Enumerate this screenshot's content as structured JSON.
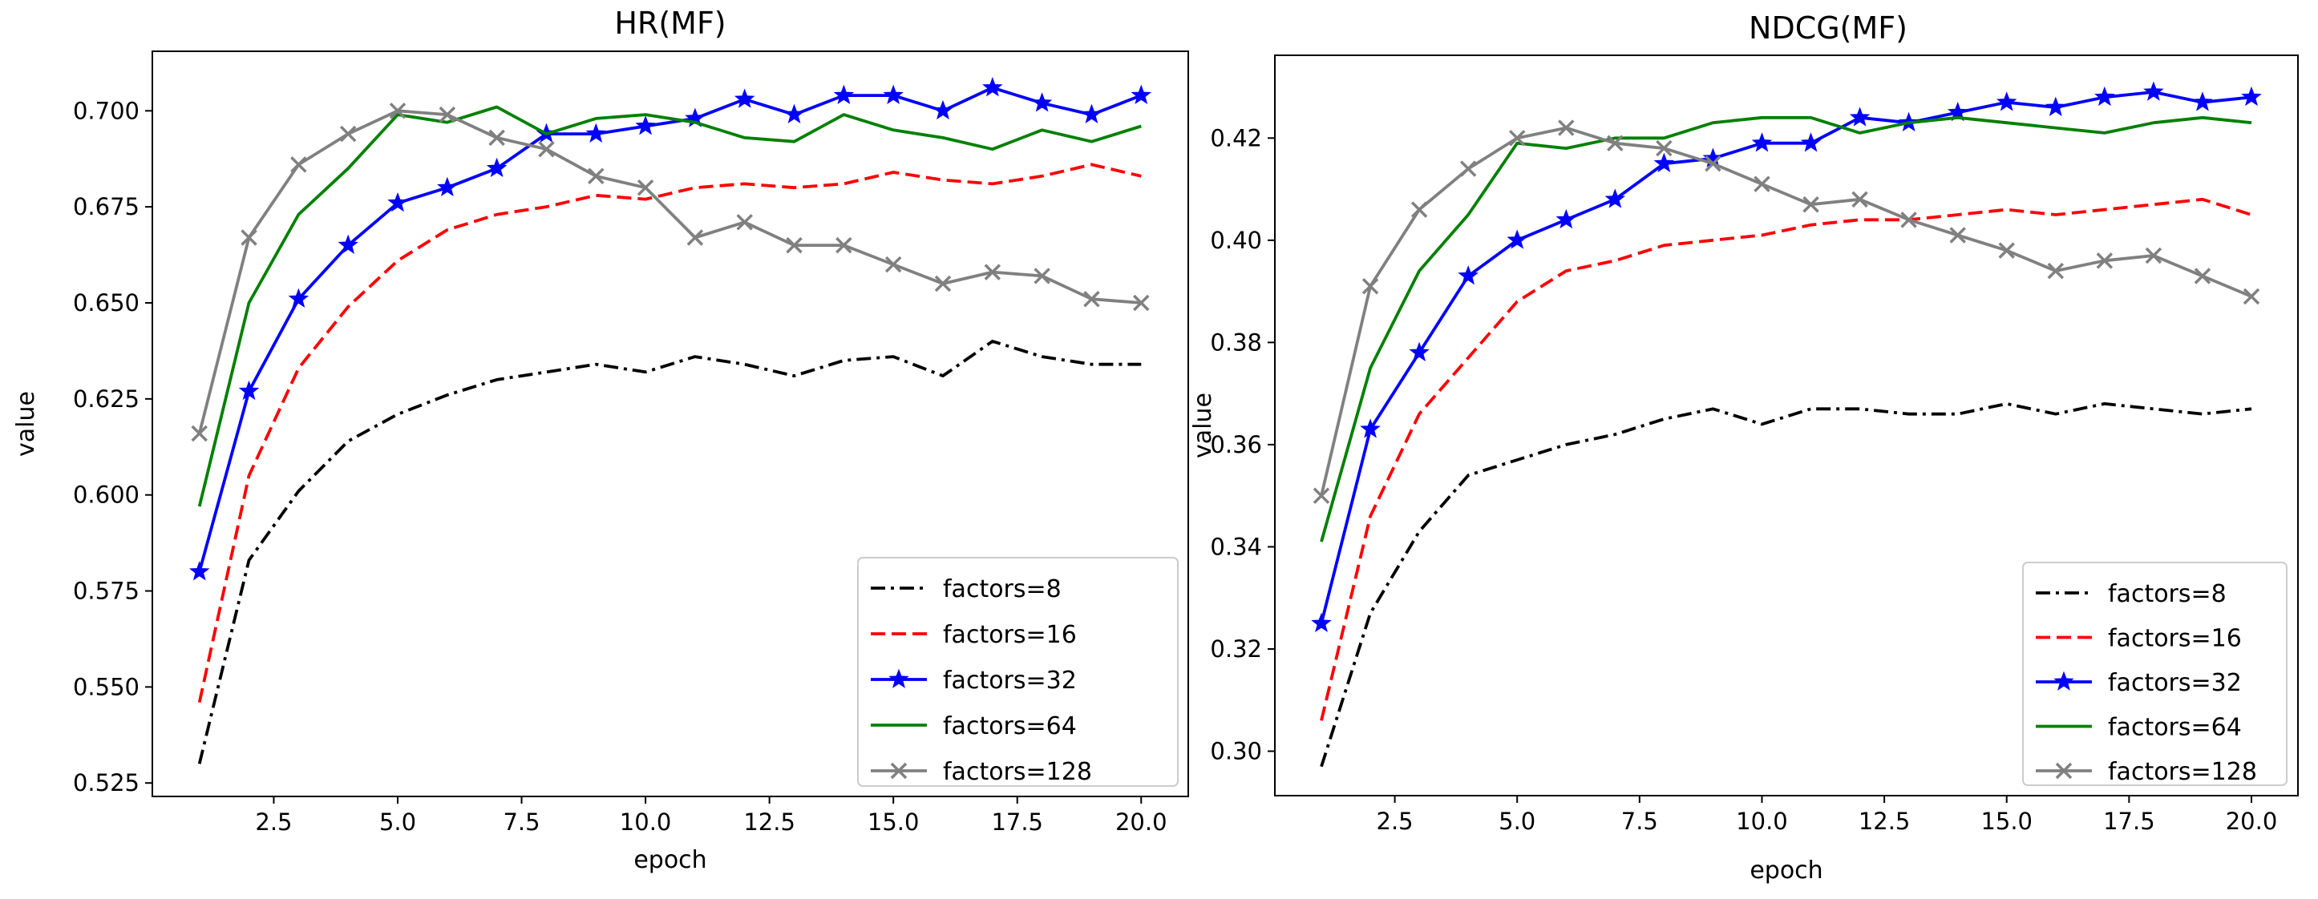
{
  "chart_data": [
    {
      "type": "line",
      "title": "HR(MF)",
      "xlabel": "epoch",
      "ylabel": "value",
      "xlim": [
        0.05,
        20.95
      ],
      "ylim": [
        0.5215,
        0.7155
      ],
      "xticks": [
        2.5,
        5.0,
        7.5,
        10.0,
        12.5,
        15.0,
        17.5,
        20.0
      ],
      "xtick_labels": [
        "2.5",
        "5.0",
        "7.5",
        "10.0",
        "12.5",
        "15.0",
        "17.5",
        "20.0"
      ],
      "yticks": [
        0.525,
        0.55,
        0.575,
        0.6,
        0.625,
        0.65,
        0.675,
        0.7
      ],
      "ytick_labels": [
        "0.525",
        "0.550",
        "0.575",
        "0.600",
        "0.625",
        "0.650",
        "0.675",
        "0.700"
      ],
      "legend_position": "lower-right",
      "x": [
        1,
        2,
        3,
        4,
        5,
        6,
        7,
        8,
        9,
        10,
        11,
        12,
        13,
        14,
        15,
        16,
        17,
        18,
        19,
        20
      ],
      "series": [
        {
          "name": "factors=8",
          "color": "#000000",
          "style": "dashdot",
          "marker": "none",
          "values": [
            0.53,
            0.583,
            0.601,
            0.614,
            0.621,
            0.626,
            0.63,
            0.632,
            0.634,
            0.632,
            0.636,
            0.634,
            0.631,
            0.635,
            0.636,
            0.631,
            0.64,
            0.636,
            0.634,
            0.634
          ]
        },
        {
          "name": "factors=16",
          "color": "#ff0000",
          "style": "dashed",
          "marker": "none",
          "values": [
            0.546,
            0.605,
            0.633,
            0.649,
            0.661,
            0.669,
            0.673,
            0.675,
            0.678,
            0.677,
            0.68,
            0.681,
            0.68,
            0.681,
            0.684,
            0.682,
            0.681,
            0.683,
            0.686,
            0.683
          ]
        },
        {
          "name": "factors=32",
          "color": "#0000ff",
          "style": "solid",
          "marker": "star",
          "values": [
            0.58,
            0.627,
            0.651,
            0.665,
            0.676,
            0.68,
            0.685,
            0.694,
            0.694,
            0.696,
            0.698,
            0.703,
            0.699,
            0.704,
            0.704,
            0.7,
            0.706,
            0.702,
            0.699,
            0.704
          ]
        },
        {
          "name": "factors=64",
          "color": "#008000",
          "style": "solid",
          "marker": "none",
          "values": [
            0.597,
            0.65,
            0.673,
            0.685,
            0.699,
            0.697,
            0.701,
            0.694,
            0.698,
            0.699,
            0.697,
            0.693,
            0.692,
            0.699,
            0.695,
            0.693,
            0.69,
            0.695,
            0.692,
            0.696
          ]
        },
        {
          "name": "factors=128",
          "color": "#808080",
          "style": "solid",
          "marker": "x",
          "values": [
            0.616,
            0.667,
            0.686,
            0.694,
            0.7,
            0.699,
            0.693,
            0.69,
            0.683,
            0.68,
            0.667,
            0.671,
            0.665,
            0.665,
            0.66,
            0.655,
            0.658,
            0.657,
            0.651,
            0.65
          ]
        }
      ]
    },
    {
      "type": "line",
      "title": "NDCG(MF)",
      "xlabel": "epoch",
      "ylabel": "value",
      "xlim": [
        0.05,
        20.95
      ],
      "ylim": [
        0.2913,
        0.4362
      ],
      "xticks": [
        2.5,
        5.0,
        7.5,
        10.0,
        12.5,
        15.0,
        17.5,
        20.0
      ],
      "xtick_labels": [
        "2.5",
        "5.0",
        "7.5",
        "10.0",
        "12.5",
        "15.0",
        "17.5",
        "20.0"
      ],
      "yticks": [
        0.3,
        0.32,
        0.34,
        0.36,
        0.38,
        0.4,
        0.42
      ],
      "ytick_labels": [
        "0.30",
        "0.32",
        "0.34",
        "0.36",
        "0.38",
        "0.40",
        "0.42"
      ],
      "legend_position": "lower-right",
      "x": [
        1,
        2,
        3,
        4,
        5,
        6,
        7,
        8,
        9,
        10,
        11,
        12,
        13,
        14,
        15,
        16,
        17,
        18,
        19,
        20
      ],
      "series": [
        {
          "name": "factors=8",
          "color": "#000000",
          "style": "dashdot",
          "marker": "none",
          "values": [
            0.297,
            0.327,
            0.343,
            0.354,
            0.357,
            0.36,
            0.362,
            0.365,
            0.367,
            0.364,
            0.367,
            0.367,
            0.366,
            0.366,
            0.368,
            0.366,
            0.368,
            0.367,
            0.366,
            0.367
          ]
        },
        {
          "name": "factors=16",
          "color": "#ff0000",
          "style": "dashed",
          "marker": "none",
          "values": [
            0.306,
            0.346,
            0.366,
            0.377,
            0.388,
            0.394,
            0.396,
            0.399,
            0.4,
            0.401,
            0.403,
            0.404,
            0.404,
            0.405,
            0.406,
            0.405,
            0.406,
            0.407,
            0.408,
            0.405
          ]
        },
        {
          "name": "factors=32",
          "color": "#0000ff",
          "style": "solid",
          "marker": "star",
          "values": [
            0.325,
            0.363,
            0.378,
            0.393,
            0.4,
            0.404,
            0.408,
            0.415,
            0.416,
            0.419,
            0.419,
            0.424,
            0.423,
            0.425,
            0.427,
            0.426,
            0.428,
            0.429,
            0.427,
            0.428
          ]
        },
        {
          "name": "factors=64",
          "color": "#008000",
          "style": "solid",
          "marker": "none",
          "values": [
            0.341,
            0.375,
            0.394,
            0.405,
            0.419,
            0.418,
            0.42,
            0.42,
            0.423,
            0.424,
            0.424,
            0.421,
            0.423,
            0.424,
            0.423,
            0.422,
            0.421,
            0.423,
            0.424,
            0.423
          ]
        },
        {
          "name": "factors=128",
          "color": "#808080",
          "style": "solid",
          "marker": "x",
          "values": [
            0.35,
            0.391,
            0.406,
            0.414,
            0.42,
            0.422,
            0.419,
            0.418,
            0.415,
            0.411,
            0.407,
            0.408,
            0.404,
            0.401,
            0.398,
            0.394,
            0.396,
            0.397,
            0.393,
            0.389
          ]
        }
      ]
    }
  ]
}
